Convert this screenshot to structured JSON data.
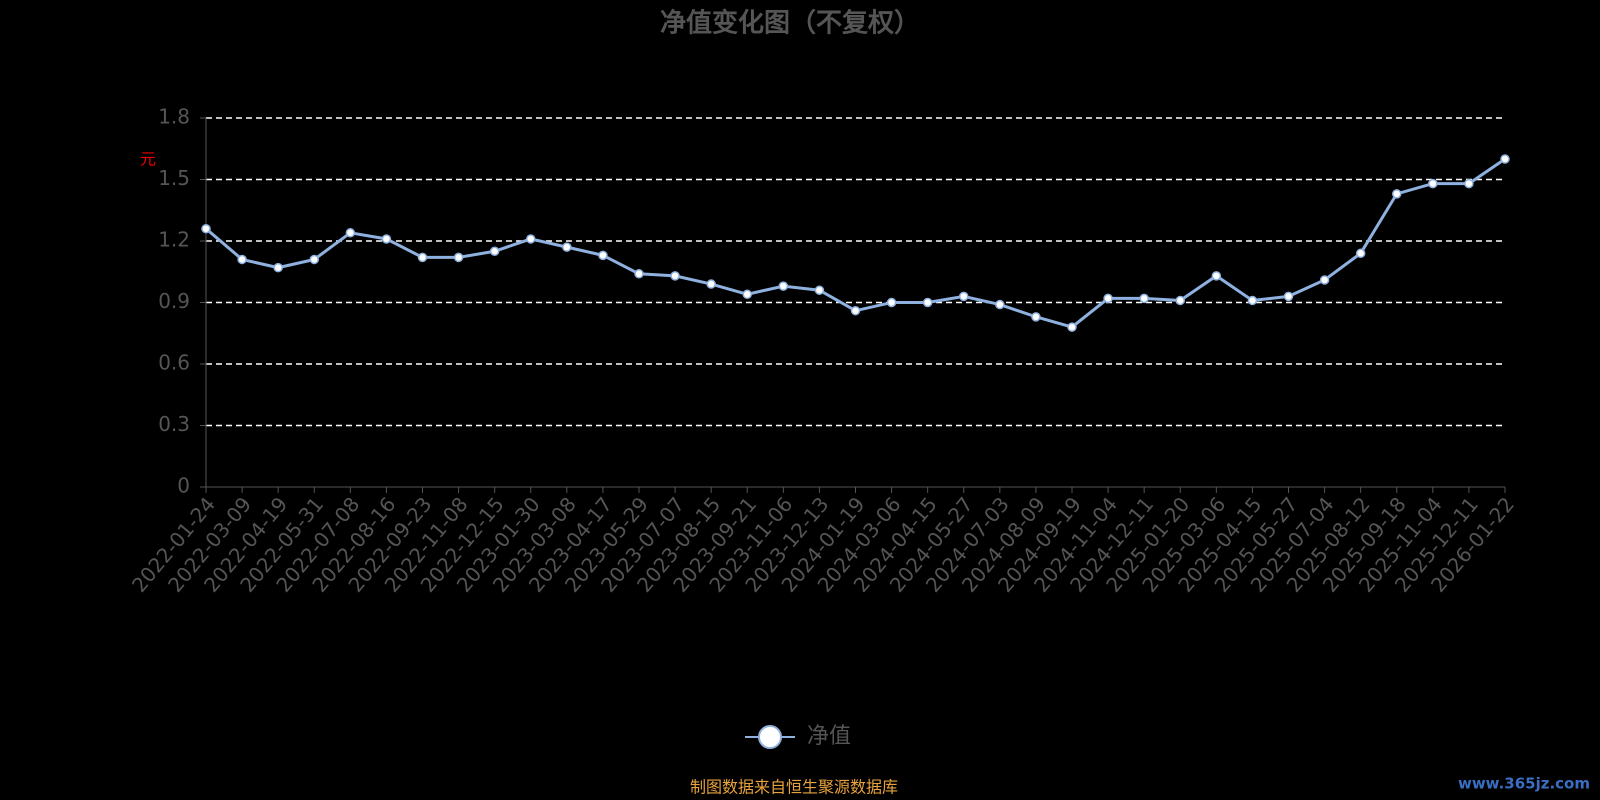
{
  "chart_data": {
    "type": "line",
    "title": "净值变化图（不复权）",
    "y_label": "元",
    "categories": [
      "2022-01-24",
      "2022-03-09",
      "2022-04-19",
      "2022-05-31",
      "2022-07-08",
      "2022-08-16",
      "2022-09-23",
      "2022-11-08",
      "2022-12-15",
      "2023-01-30",
      "2023-03-08",
      "2023-04-17",
      "2023-05-29",
      "2023-07-07",
      "2023-08-15",
      "2023-09-21",
      "2023-11-06",
      "2023-12-13",
      "2024-01-19",
      "2024-03-06",
      "2024-04-15",
      "2024-05-27",
      "2024-07-03",
      "2024-08-09",
      "2024-09-19",
      "2024-11-04",
      "2024-12-11",
      "2025-01-20",
      "2025-03-06",
      "2025-04-15",
      "2025-05-27",
      "2025-07-04",
      "2025-08-12",
      "2025-09-18",
      "2025-11-04",
      "2025-12-11",
      "2026-01-22"
    ],
    "series": [
      {
        "name": "净值",
        "color": "#8fb1e0",
        "values": [
          1.26,
          1.11,
          1.07,
          1.11,
          1.24,
          1.21,
          1.12,
          1.12,
          1.15,
          1.21,
          1.17,
          1.13,
          1.04,
          1.03,
          0.99,
          0.94,
          0.98,
          0.96,
          0.86,
          0.9,
          0.9,
          0.93,
          0.89,
          0.83,
          0.78,
          0.92,
          0.92,
          0.91,
          1.03,
          0.91,
          0.93,
          1.01,
          1.14,
          1.43,
          1.48,
          1.48,
          1.6
        ]
      }
    ],
    "ylim": [
      0,
      1.8
    ],
    "yticks": [
      0,
      0.3,
      0.6,
      0.9,
      1.2,
      1.5,
      1.8
    ],
    "grid": true,
    "source": "制图数据来自恒生聚源数据库",
    "watermark": "www.365jz.com"
  }
}
